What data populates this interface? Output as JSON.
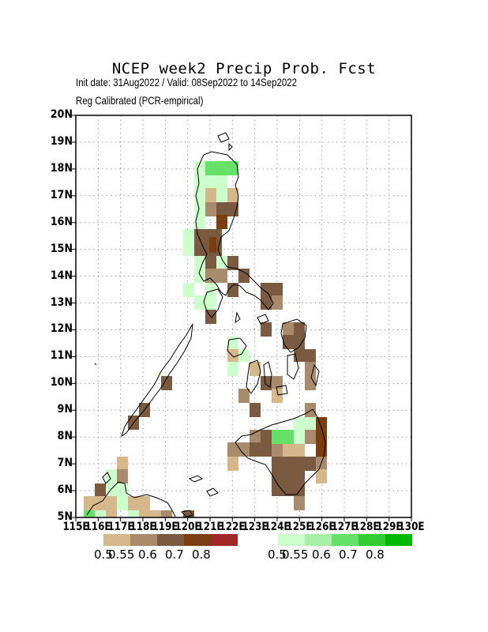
{
  "title": "NCEP week2 Precip Prob. Fcst",
  "subtitle_line1": "Init date: 31Aug2022 / Valid: 08Sep2022 to 14Sep2022",
  "subtitle_line2": "Reg Calibrated (PCR-empirical)",
  "lat_labels": [
    "20N",
    "19N",
    "18N",
    "17N",
    "16N",
    "15N",
    "14N",
    "13N",
    "12N",
    "11N",
    "10N",
    "9N",
    "8N",
    "7N",
    "6N",
    "5N"
  ],
  "lon_labels": [
    "115E",
    "116E",
    "117E",
    "118E",
    "119E",
    "120E",
    "121E",
    "122E",
    "123E",
    "124E",
    "125E",
    "126E",
    "127E",
    "128E",
    "129E",
    "130E"
  ],
  "legend_dry": {
    "colors": [
      "#d4b88c",
      "#a88a6c",
      "#7a5a40",
      "#7a3e10",
      "#a02828"
    ],
    "labels": [
      "0.5",
      "0.55",
      "0.6",
      "0.7",
      "0.8"
    ]
  },
  "legend_wet": {
    "colors": [
      "#ccffcc",
      "#a8f0a8",
      "#66e066",
      "#33cc33",
      "#00b800"
    ],
    "labels": [
      "0.5",
      "0.55",
      "0.6",
      "0.7",
      "0.8"
    ]
  },
  "map_extent": {
    "lon": [
      115,
      130
    ],
    "lat": [
      5,
      20
    ]
  }
}
